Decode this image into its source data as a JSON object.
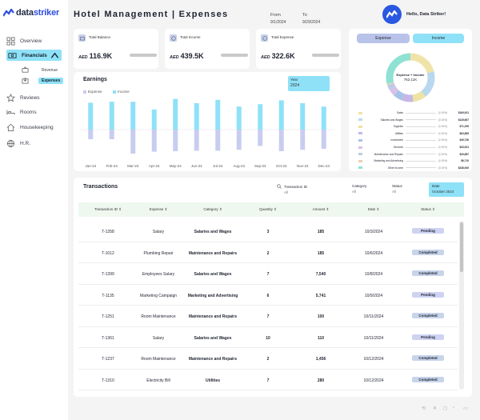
{
  "brand": {
    "name_a": "data",
    "name_b": "striker"
  },
  "sidebar": {
    "items": [
      {
        "label": "Overview",
        "icon": "grid-icon"
      },
      {
        "label": "Financials",
        "icon": "cash-icon"
      },
      {
        "label": "Reviews",
        "icon": "star-icon"
      },
      {
        "label": "Rooms",
        "icon": "bed-icon"
      },
      {
        "label": "Housekeeping",
        "icon": "house-icon"
      },
      {
        "label": "H.R.",
        "icon": "globe-icon"
      }
    ],
    "sub_items": [
      {
        "label": "Revenue"
      },
      {
        "label": "Expenses"
      }
    ]
  },
  "header": {
    "title": "Hotel Management | Expenses",
    "from_label": "From",
    "from_value": "9/1/2024",
    "to_label": "To",
    "to_value": "9/29/2024",
    "greeting": "Hello, Data Striker!"
  },
  "kpis": [
    {
      "label": "Total Balance",
      "currency": "AED",
      "value": "116.9K"
    },
    {
      "label": "Total Income",
      "currency": "AED",
      "value": "439.5K"
    },
    {
      "label": "Total Expense",
      "currency": "AED",
      "value": "322.6K"
    }
  ],
  "earnings": {
    "title": "Earnings",
    "legend_expense": "Expense",
    "legend_income": "Income",
    "year_label": "Year",
    "year_value": "2024"
  },
  "donut": {
    "toggle_expense": "Expense",
    "toggle_income": "Income",
    "center_label": "Expense + Income",
    "center_value": "762.11K",
    "categories": [
      {
        "name": "Sales",
        "pct": "(0.00%)",
        "amount": "$169,921",
        "color": "#f0e3a8"
      },
      {
        "name": "Salaries and Wages",
        "pct": "(0.00%)",
        "amount": "$149,667",
        "color": "#b9d8ef"
      },
      {
        "name": "Supplies",
        "pct": "(0.00%)",
        "amount": "$71,299",
        "color": "#efe2a2"
      },
      {
        "name": "Utilities",
        "pct": "(0.00%)",
        "amount": "$63,885",
        "color": "#c5b7e6"
      },
      {
        "name": "Investment",
        "pct": "(0.00%)",
        "amount": "$49,736",
        "color": "#a8c3e8"
      },
      {
        "name": "Services",
        "pct": "(0.00%)",
        "amount": "$33,931",
        "color": "#d9c1e8"
      },
      {
        "name": "Maintenance and Repairs",
        "pct": "(0.00%)",
        "amount": "$29,887",
        "color": "#bfcbe8"
      },
      {
        "name": "Marketing and Advertising",
        "pct": "(0.00%)",
        "amount": "$6,710",
        "color": "#ead1b0"
      },
      {
        "name": "Other Income",
        "pct": "(0.00%)",
        "amount": "$238,949",
        "color": "#8fe1d3"
      }
    ]
  },
  "chart_data": {
    "type": "bar",
    "categories": [
      "Jan-24",
      "Feb-24",
      "Mar-24",
      "Apr-24",
      "May-24",
      "Jun-24",
      "Jul-24",
      "Aug-24",
      "Sep-24",
      "Oct-24",
      "Nov-24",
      "Dec-24"
    ],
    "series": [
      {
        "name": "Income",
        "values": [
          56,
          58,
          58,
          42,
          64,
          55,
          62,
          48,
          53,
          61,
          55,
          48
        ],
        "color": "#8fe1f7"
      },
      {
        "name": "Expense",
        "values": [
          -20,
          -20,
          -50,
          -46,
          -45,
          -44,
          -44,
          -42,
          -34,
          -45,
          -42,
          -40
        ],
        "color": "#c8cdf0"
      }
    ],
    "title": "Earnings",
    "xlabel": "",
    "ylabel": "",
    "ylim": [
      -60,
      70
    ],
    "grid": false,
    "legend": "top-left"
  },
  "transactions": {
    "title": "Transactions",
    "filters": [
      {
        "label": "Transaction ID",
        "value": "All"
      },
      {
        "label": "Category",
        "value": "All"
      },
      {
        "label": "Status",
        "value": "All"
      },
      {
        "label": "Date",
        "value": "October 2024"
      }
    ],
    "columns": [
      "Transaction ID ⇕",
      "Expense ⇕",
      "Category ⇕",
      "Quantity ⇕",
      "Amount ⇕",
      "Date ⇕",
      "Status ⇕"
    ],
    "rows": [
      {
        "id": "T-1358",
        "expense": "Salary",
        "category": "Salaries and Wages",
        "qty": "3",
        "amount": "185",
        "date": "10/3/2024",
        "status": "Pending"
      },
      {
        "id": "T-1012",
        "expense": "Plumbing Repair",
        "category": "Maintenance and Repairs",
        "qty": "2",
        "amount": "185",
        "date": "10/6/2024",
        "status": "Completed"
      },
      {
        "id": "T-1399",
        "expense": "Employees Salary",
        "category": "Salaries and Wages",
        "qty": "7",
        "amount": "7,540",
        "date": "10/8/2024",
        "status": "Completed"
      },
      {
        "id": "T-1135",
        "expense": "Marketing Campaign",
        "category": "Marketing and Advertising",
        "qty": "6",
        "amount": "5,741",
        "date": "10/9/2024",
        "status": "Pending"
      },
      {
        "id": "T-1251",
        "expense": "Room Maintenance",
        "category": "Maintenance and Repairs",
        "qty": "7",
        "amount": "100",
        "date": "10/11/2024",
        "status": "Completed"
      },
      {
        "id": "T-1361",
        "expense": "Salary",
        "category": "Salaries and Wages",
        "qty": "10",
        "amount": "110",
        "date": "10/11/2024",
        "status": "Pending"
      },
      {
        "id": "T-1237",
        "expense": "Room Maintenance",
        "category": "Maintenance and Repairs",
        "qty": "2",
        "amount": "1,456",
        "date": "10/12/2024",
        "status": "Completed"
      },
      {
        "id": "T-1310",
        "expense": "Electricity Bill",
        "category": "Utilities",
        "qty": "7",
        "amount": "280",
        "date": "10/12/2024",
        "status": "Completed"
      }
    ]
  },
  "footer_icons": [
    "share-icon",
    "x-icon",
    "instagram-icon",
    "linkedin-icon",
    "youtube-icon"
  ]
}
